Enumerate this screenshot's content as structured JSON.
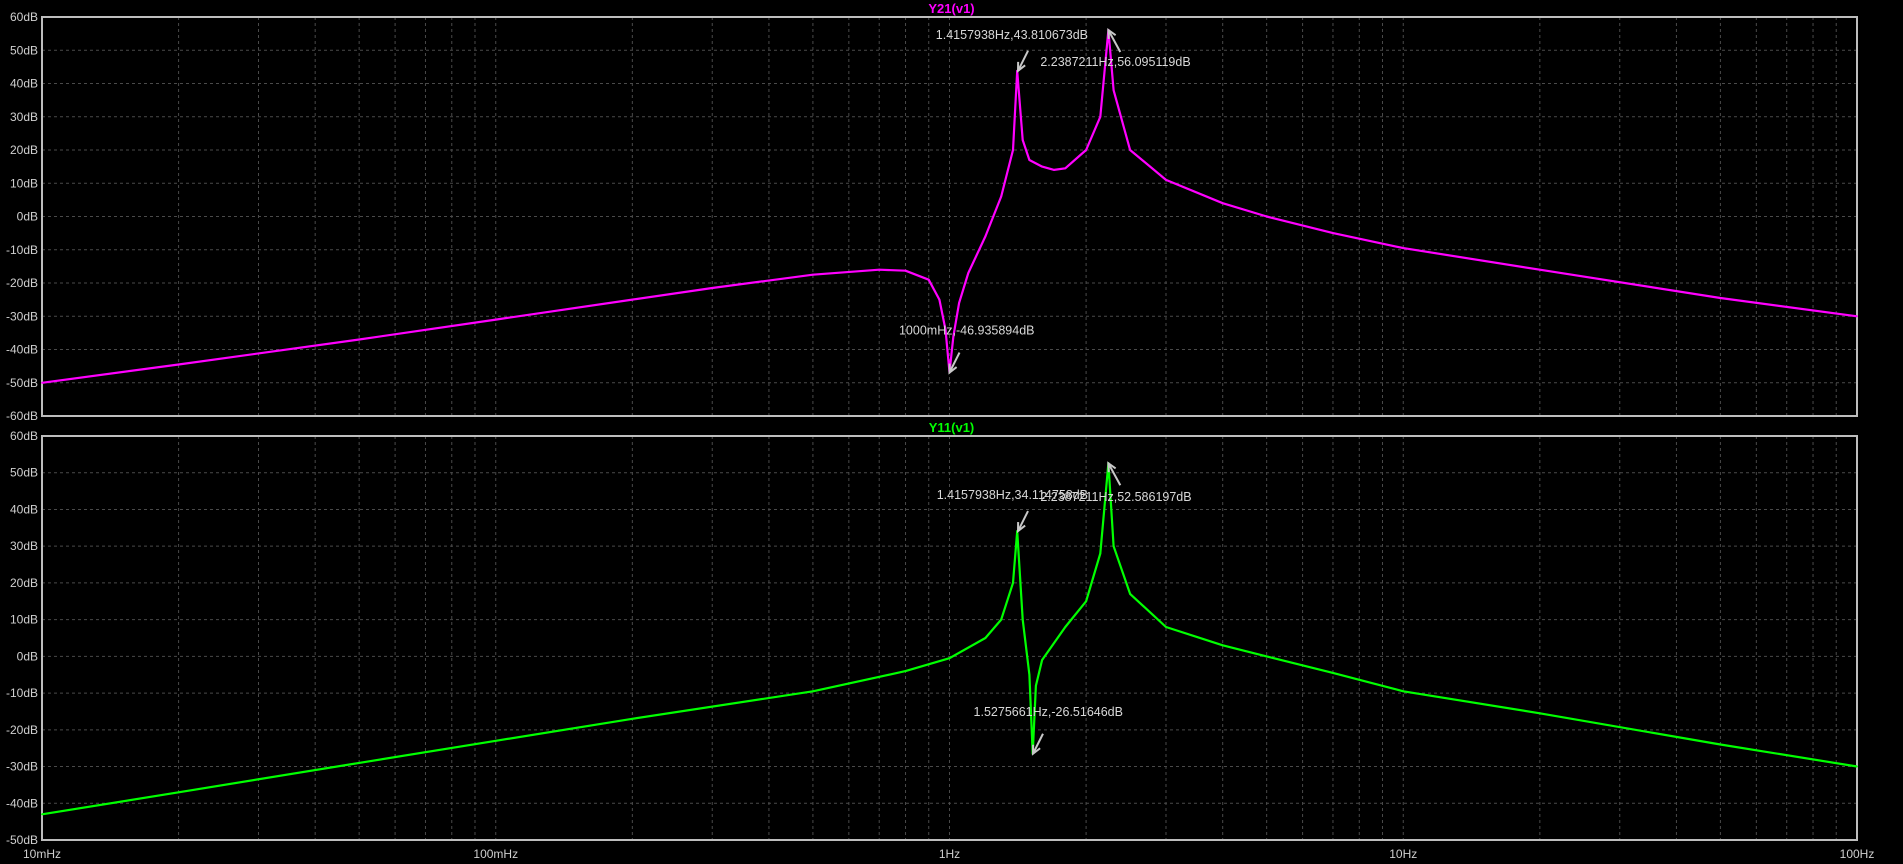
{
  "chart_data": [
    {
      "type": "line",
      "title": "Y21(v1)",
      "title_color": "#ff00ff",
      "ylabel_unit": "dB",
      "ylim": [
        -60,
        60
      ],
      "yticks": [
        "60dB",
        "50dB",
        "40dB",
        "30dB",
        "20dB",
        "10dB",
        "0dB",
        "-10dB",
        "-20dB",
        "-30dB",
        "-40dB",
        "-50dB",
        "-60dB"
      ],
      "xlim_hz": [
        0.01,
        100
      ],
      "x_scale": "log",
      "grid": true,
      "series": [
        {
          "color": "#ff00ff",
          "points": [
            [
              0.01,
              -50
            ],
            [
              0.02,
              -44.5
            ],
            [
              0.05,
              -37
            ],
            [
              0.1,
              -31
            ],
            [
              0.2,
              -25
            ],
            [
              0.3,
              -21.5
            ],
            [
              0.5,
              -17.5
            ],
            [
              0.7,
              -16
            ],
            [
              0.8,
              -16.3
            ],
            [
              0.9,
              -19
            ],
            [
              0.95,
              -25
            ],
            [
              0.98,
              -34
            ],
            [
              1.0,
              -46.9
            ],
            [
              1.02,
              -36
            ],
            [
              1.05,
              -26
            ],
            [
              1.1,
              -17
            ],
            [
              1.2,
              -6
            ],
            [
              1.3,
              6
            ],
            [
              1.38,
              20
            ],
            [
              1.41,
              43.8
            ],
            [
              1.45,
              23
            ],
            [
              1.5,
              17
            ],
            [
              1.6,
              15
            ],
            [
              1.7,
              14
            ],
            [
              1.8,
              14.5
            ],
            [
              2.0,
              20
            ],
            [
              2.15,
              30
            ],
            [
              2.24,
              56.1
            ],
            [
              2.3,
              38
            ],
            [
              2.5,
              20
            ],
            [
              3,
              11
            ],
            [
              4,
              4
            ],
            [
              5,
              0
            ],
            [
              7,
              -5
            ],
            [
              10,
              -9.5
            ],
            [
              20,
              -16
            ],
            [
              50,
              -24.5
            ],
            [
              100,
              -30
            ]
          ]
        }
      ],
      "annotations": [
        {
          "label": "1.4157938Hz,43.810673dB",
          "x": 1.4157938,
          "y": 43.810673
        },
        {
          "label": "2.2387211Hz,56.095119dB",
          "x": 2.2387211,
          "y": 56.095119
        },
        {
          "label": "1000mHz,-46.935894dB",
          "x": 1.0,
          "y": -46.935894
        }
      ]
    },
    {
      "type": "line",
      "title": "Y11(v1)",
      "title_color": "#00ff00",
      "ylabel_unit": "dB",
      "ylim": [
        -50,
        60
      ],
      "yticks": [
        "60dB",
        "50dB",
        "40dB",
        "30dB",
        "20dB",
        "10dB",
        "0dB",
        "-10dB",
        "-20dB",
        "-30dB",
        "-40dB",
        "-50dB"
      ],
      "xlim_hz": [
        0.01,
        100
      ],
      "x_scale": "log",
      "xticks": [
        "10mHz",
        "100mHz",
        "1Hz",
        "10Hz",
        "100Hz"
      ],
      "grid": true,
      "series": [
        {
          "color": "#00ff00",
          "points": [
            [
              0.01,
              -43
            ],
            [
              0.02,
              -37
            ],
            [
              0.05,
              -29
            ],
            [
              0.1,
              -23
            ],
            [
              0.2,
              -17
            ],
            [
              0.5,
              -9.5
            ],
            [
              0.8,
              -4
            ],
            [
              1.0,
              -0.5
            ],
            [
              1.2,
              5
            ],
            [
              1.3,
              10
            ],
            [
              1.38,
              20
            ],
            [
              1.41,
              34.1
            ],
            [
              1.45,
              10
            ],
            [
              1.5,
              -5
            ],
            [
              1.525,
              -26.5
            ],
            [
              1.55,
              -8
            ],
            [
              1.6,
              -1
            ],
            [
              1.8,
              8
            ],
            [
              2.0,
              15
            ],
            [
              2.15,
              28
            ],
            [
              2.24,
              52.6
            ],
            [
              2.3,
              30
            ],
            [
              2.5,
              17
            ],
            [
              3,
              8
            ],
            [
              4,
              3
            ],
            [
              5,
              0
            ],
            [
              7,
              -4.5
            ],
            [
              10,
              -9.5
            ],
            [
              20,
              -15.5
            ],
            [
              50,
              -24
            ],
            [
              100,
              -30
            ]
          ]
        }
      ],
      "annotations": [
        {
          "label": "1.4157938Hz,34.114758dB",
          "x": 1.4157938,
          "y": 34.114758
        },
        {
          "label": "2.2387211Hz,52.586197dB",
          "x": 2.2387211,
          "y": 52.586197
        },
        {
          "label": "1.5275661Hz,-26.51646dB",
          "x": 1.5275661,
          "y": -26.51646
        }
      ]
    }
  ]
}
